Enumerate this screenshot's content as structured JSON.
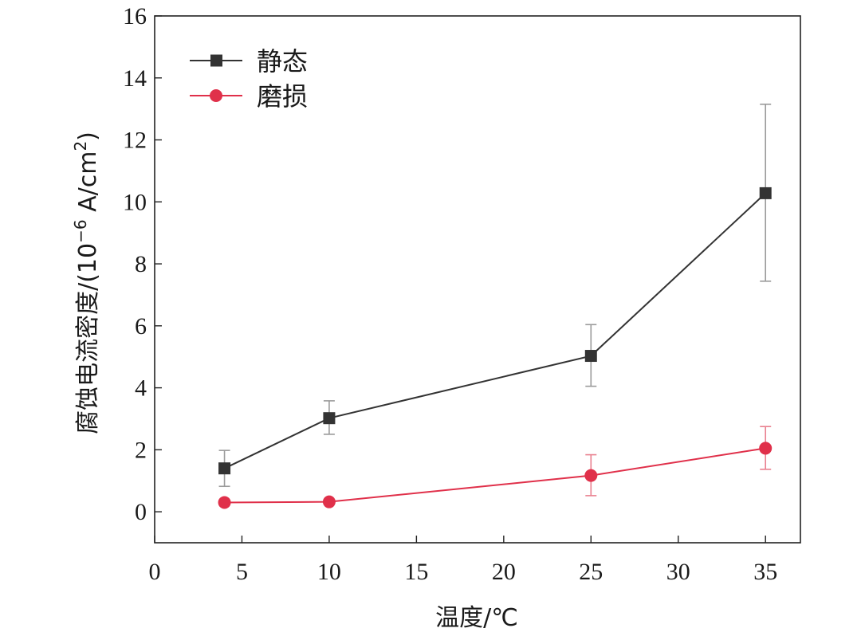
{
  "chart_data": {
    "type": "line",
    "xlabel": "温度/℃",
    "ylabel_main": "腐蚀电流密度/(10",
    "ylabel_sup": "−6",
    "ylabel_unit": " A/cm",
    "ylabel_sup2": "2",
    "ylabel_end": ")",
    "xlim": [
      0,
      37
    ],
    "ylim": [
      -1,
      16
    ],
    "xticks": [
      0,
      5,
      10,
      15,
      20,
      25,
      30,
      35
    ],
    "yticks": [
      0,
      2,
      4,
      6,
      8,
      10,
      12,
      14,
      16
    ],
    "grid": false,
    "legend_position": "top-left",
    "x": [
      4,
      10,
      25,
      35
    ],
    "series": [
      {
        "name": "静态",
        "color": "#333333",
        "marker": "square",
        "values": [
          1.4,
          3.02,
          5.03,
          10.28
        ],
        "err_low": [
          0.82,
          2.5,
          4.05,
          7.44
        ],
        "err_high": [
          1.98,
          3.58,
          6.04,
          13.15
        ]
      },
      {
        "name": "磨损",
        "color": "#e0304a",
        "marker": "circle",
        "values": [
          0.3,
          0.32,
          1.17,
          2.05
        ],
        "err_low": [
          0.3,
          0.32,
          0.52,
          1.37
        ],
        "err_high": [
          0.3,
          0.32,
          1.84,
          2.75
        ]
      }
    ]
  }
}
